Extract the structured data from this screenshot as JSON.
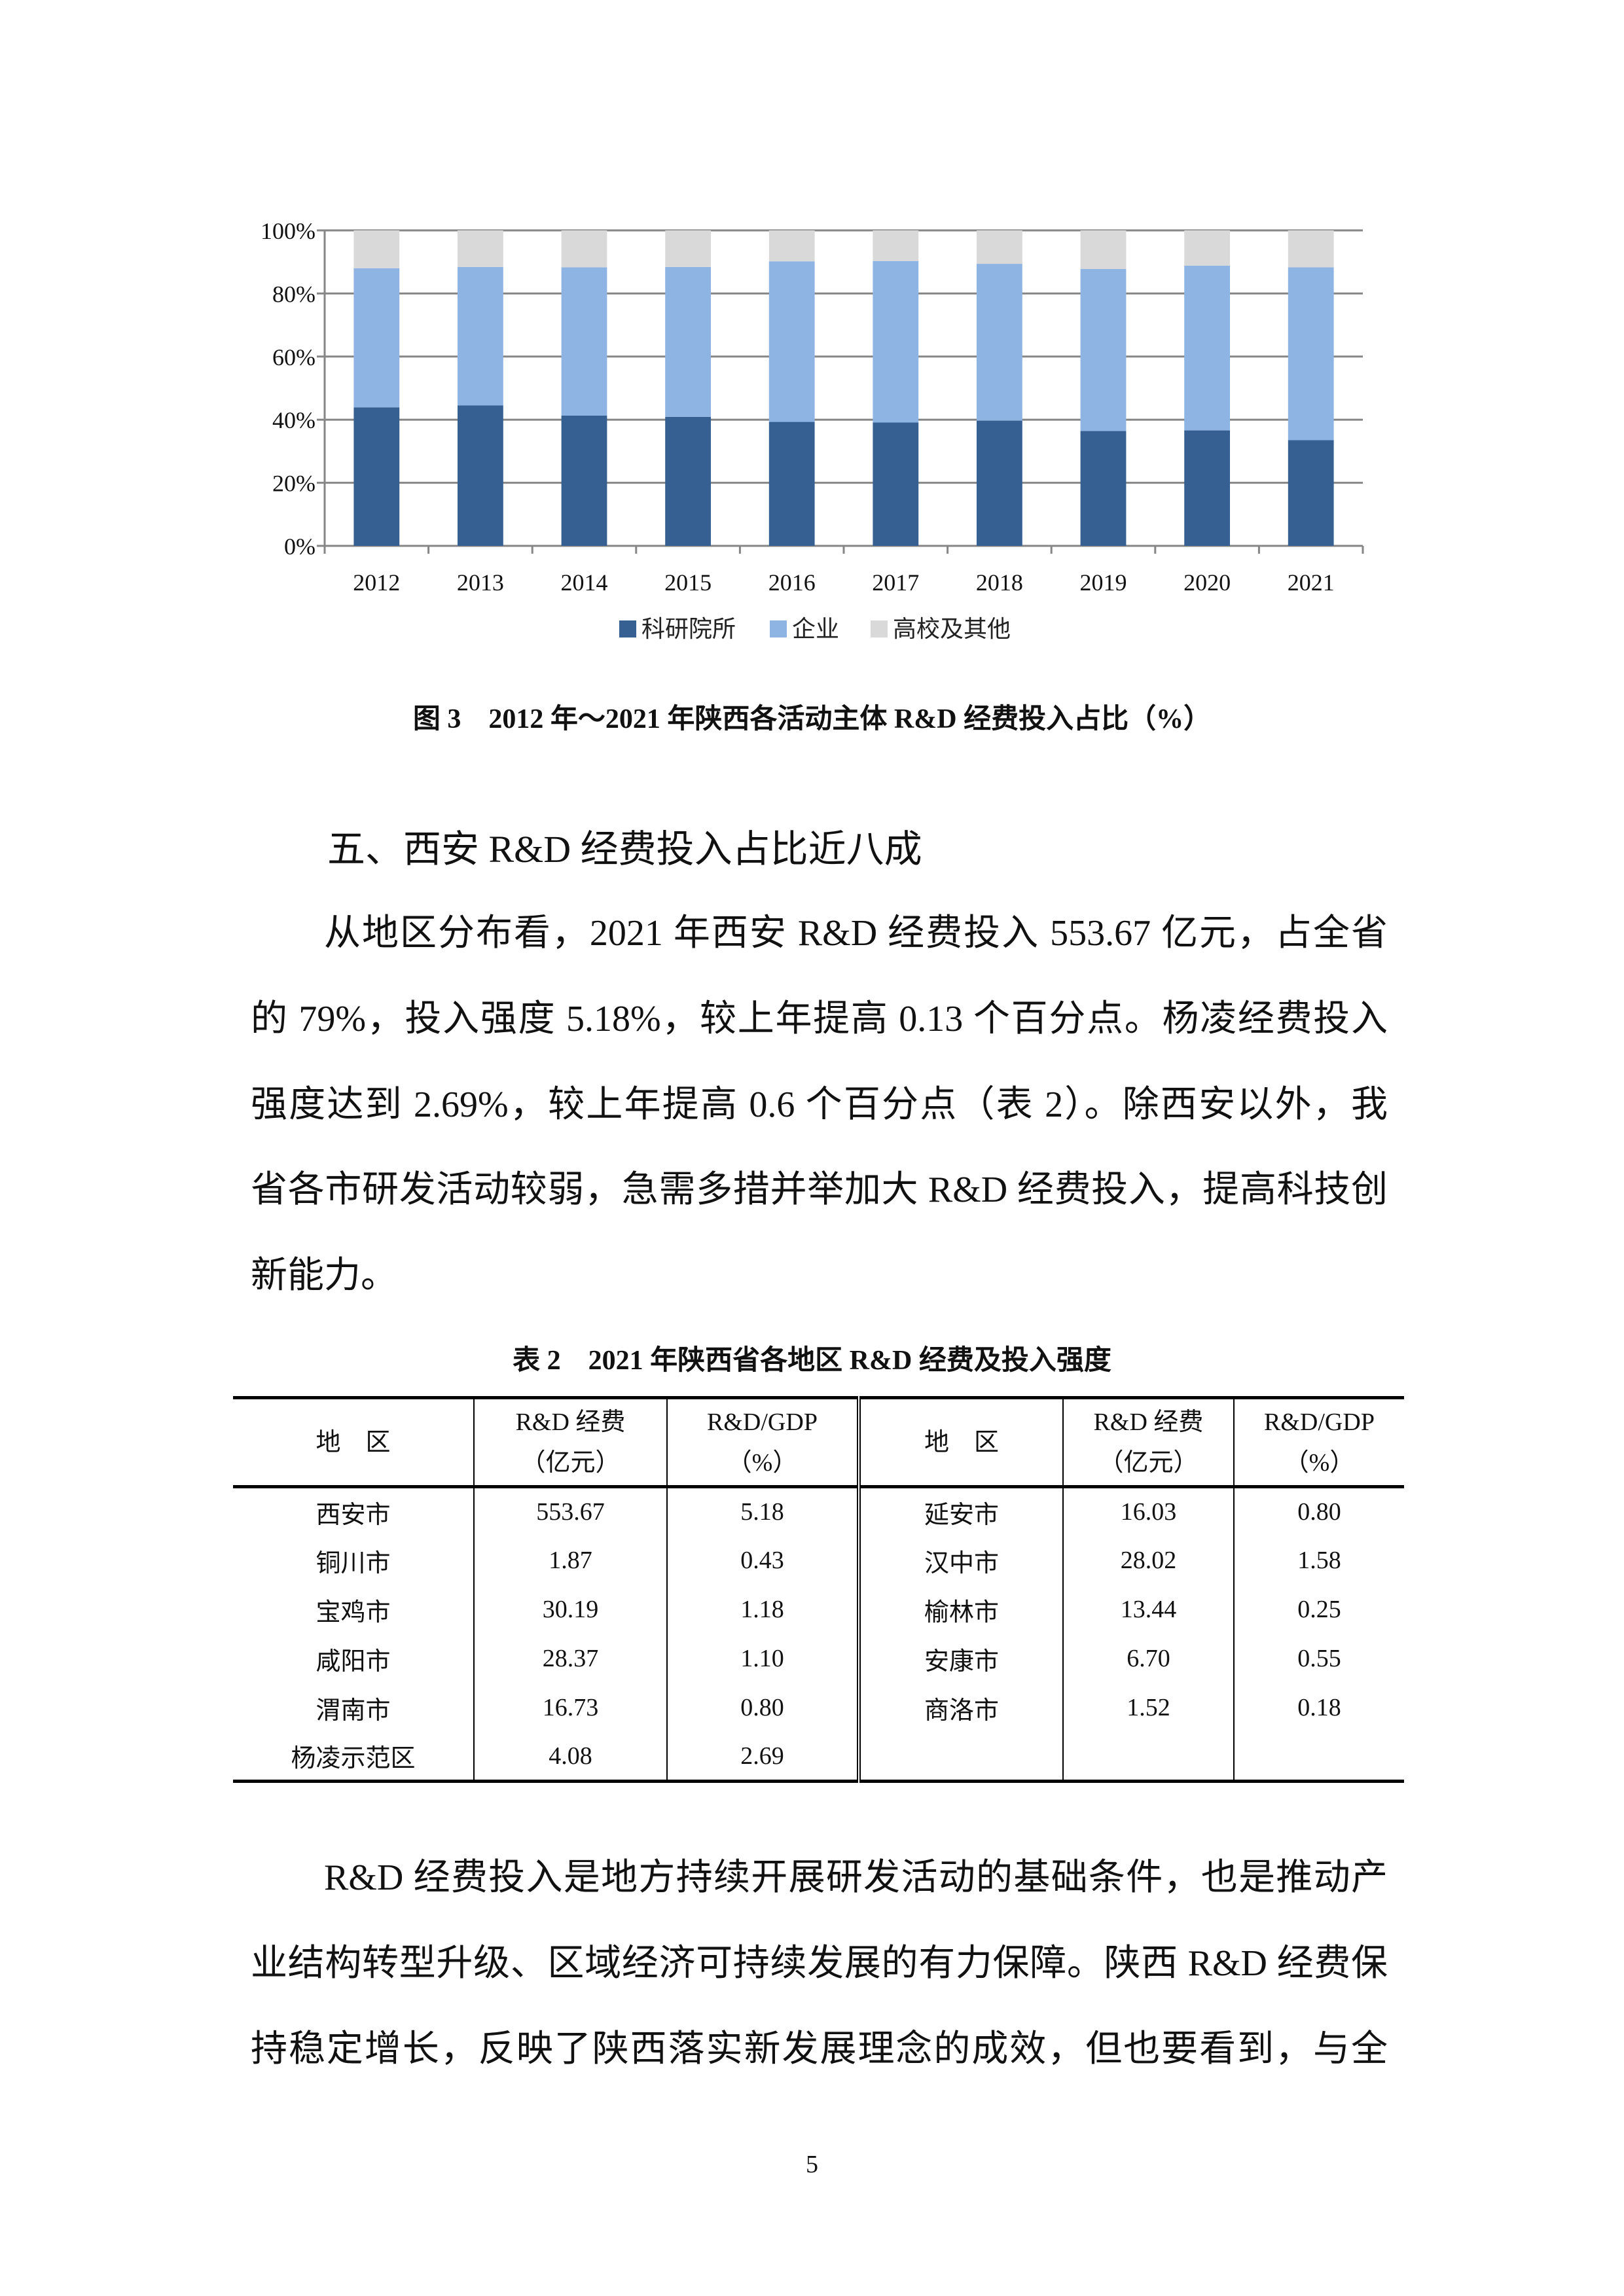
{
  "chart_data": {
    "type": "bar",
    "stacked": true,
    "percent_stacked": true,
    "categories": [
      "2012",
      "2013",
      "2014",
      "2015",
      "2016",
      "2017",
      "2018",
      "2019",
      "2020",
      "2021"
    ],
    "series": [
      {
        "name": "科研院所",
        "color": "#366092",
        "values": [
          43.9,
          44.5,
          41.3,
          40.9,
          39.3,
          39.1,
          39.7,
          36.4,
          36.6,
          33.5
        ]
      },
      {
        "name": "企业",
        "color": "#8EB4E3",
        "values": [
          44.1,
          43.9,
          47.0,
          47.5,
          50.9,
          51.2,
          49.7,
          51.4,
          52.2,
          54.8
        ]
      },
      {
        "name": "高校及其他",
        "color": "#D9D9D9",
        "values": [
          12.0,
          11.6,
          11.7,
          11.6,
          9.8,
          9.7,
          10.6,
          12.2,
          11.2,
          11.7
        ]
      }
    ],
    "yticks": [
      "0%",
      "20%",
      "40%",
      "60%",
      "80%",
      "100%"
    ],
    "ylim": [
      0,
      100
    ],
    "grid": true,
    "legend": "bottom"
  },
  "figure_caption": "图 3　2012 年～2021 年陕西各活动主体 R&D 经费投入占比（%）",
  "section_heading": "五、西安 R&D 经费投入占比近八成",
  "paragraph1_lines": [
    "从地区分布看，2021 年西安 R&D 经费投入 553.67 亿元，占全省",
    "的 79%，投入强度 5.18%，较上年提高 0.13 个百分点。杨凌经费投入",
    "强度达到 2.69%，较上年提高 0.6 个百分点（表 2）。除西安以外，我",
    "省各市研发活动较弱，急需多措并举加大 R&D 经费投入，提高科技创",
    "新能力。"
  ],
  "table_title": "表 2　2021 年陕西省各地区 R&D 经费及投入强度",
  "table": {
    "headers": [
      {
        "line1": "地　区",
        "line2": ""
      },
      {
        "line1": "R&D 经费",
        "line2": "（亿元）"
      },
      {
        "line1": "R&D/GDP",
        "line2": "（%）"
      },
      {
        "line1": "地　区",
        "line2": ""
      },
      {
        "line1": "R&D 经费",
        "line2": "（亿元）"
      },
      {
        "line1": "R&D/GDP",
        "line2": "（%）"
      }
    ],
    "rows": [
      [
        "西安市",
        "553.67",
        "5.18",
        "延安市",
        "16.03",
        "0.80"
      ],
      [
        "铜川市",
        "1.87",
        "0.43",
        "汉中市",
        "28.02",
        "1.58"
      ],
      [
        "宝鸡市",
        "30.19",
        "1.18",
        "榆林市",
        "13.44",
        "0.25"
      ],
      [
        "咸阳市",
        "28.37",
        "1.10",
        "安康市",
        "6.70",
        "0.55"
      ],
      [
        "渭南市",
        "16.73",
        "0.80",
        "商洛市",
        "1.52",
        "0.18"
      ],
      [
        "杨凌示范区",
        "4.08",
        "2.69",
        "",
        "",
        ""
      ]
    ]
  },
  "paragraph2_lines": [
    "R&D 经费投入是地方持续开展研发活动的基础条件，也是推动产",
    "业结构转型升级、区域经济可持续发展的有力保障。陕西 R&D 经费保",
    "持稳定增长，反映了陕西落实新发展理念的成效，但也要看到，与全"
  ],
  "page_number": "5"
}
